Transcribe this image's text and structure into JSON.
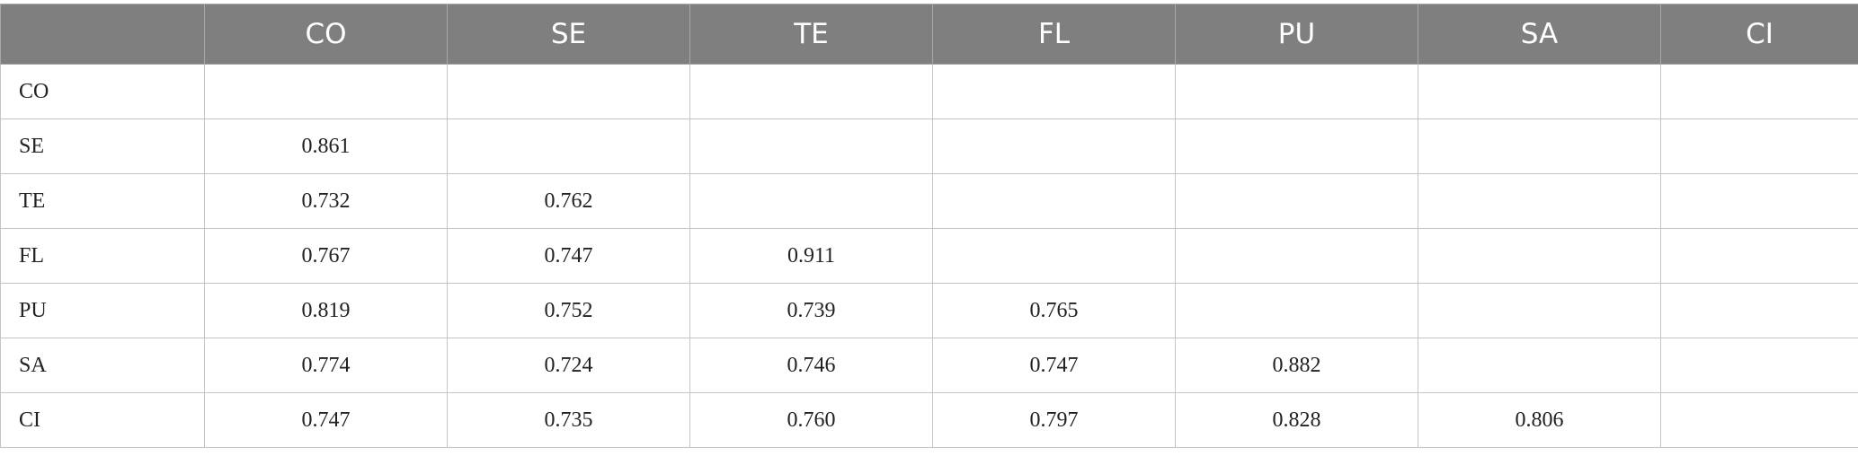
{
  "table": {
    "corner": "",
    "columns": [
      "CO",
      "SE",
      "TE",
      "FL",
      "PU",
      "SA",
      "CI"
    ],
    "rows": [
      {
        "label": "CO",
        "values": [
          "",
          "",
          "",
          "",
          "",
          "",
          ""
        ]
      },
      {
        "label": "SE",
        "values": [
          "0.861",
          "",
          "",
          "",
          "",
          "",
          ""
        ]
      },
      {
        "label": "TE",
        "values": [
          "0.732",
          "0.762",
          "",
          "",
          "",
          "",
          ""
        ]
      },
      {
        "label": "FL",
        "values": [
          "0.767",
          "0.747",
          "0.911",
          "",
          "",
          "",
          ""
        ]
      },
      {
        "label": "PU",
        "values": [
          "0.819",
          "0.752",
          "0.739",
          "0.765",
          "",
          "",
          ""
        ]
      },
      {
        "label": "SA",
        "values": [
          "0.774",
          "0.724",
          "0.746",
          "0.747",
          "0.882",
          "",
          ""
        ]
      },
      {
        "label": "CI",
        "values": [
          "0.747",
          "0.735",
          "0.760",
          "0.797",
          "0.828",
          "0.806",
          ""
        ]
      }
    ]
  },
  "colors": {
    "header_bg": "#7f7f7f",
    "header_text": "#ffffff",
    "grid": "#c4c4c4"
  }
}
